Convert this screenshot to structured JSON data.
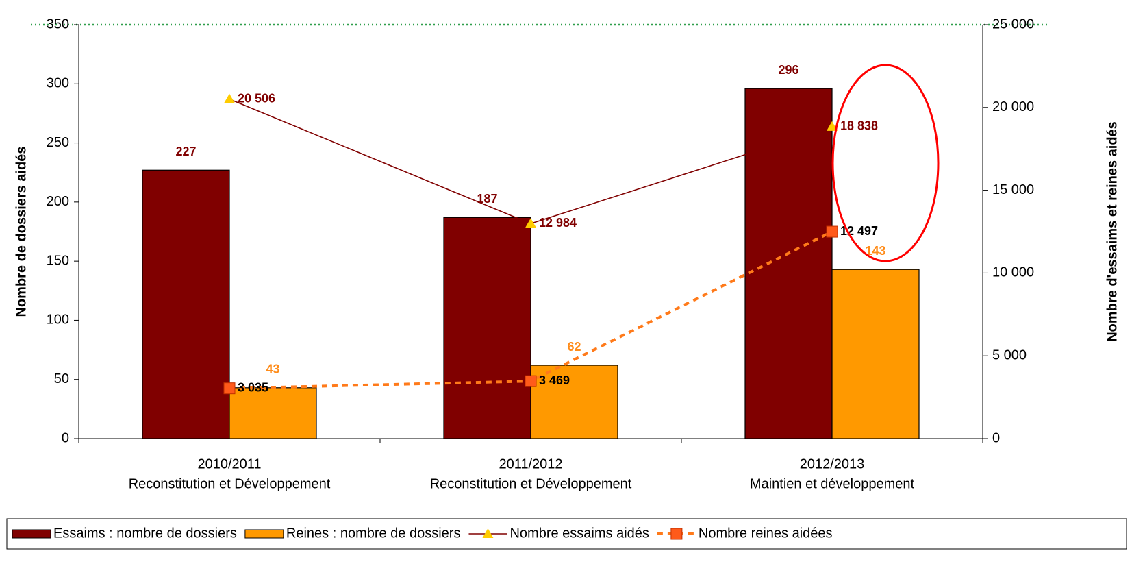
{
  "chart_data": {
    "type": "bar",
    "categories": [
      [
        "2010/2011",
        "Reconstitution et Développement"
      ],
      [
        "2011/2012",
        "Reconstitution et Développement"
      ],
      [
        "2012/2013",
        "Maintien et développement"
      ]
    ],
    "ylabel": "Nombre de dossiers aidés",
    "y2label": "Nombre d'essaims et reines aidés",
    "ylim": [
      0,
      350
    ],
    "yticks": [
      0,
      50,
      100,
      150,
      200,
      250,
      300,
      350
    ],
    "y2lim": [
      0,
      25000
    ],
    "y2ticks": [
      0,
      {
        "value": 5000,
        "label": "5 000"
      },
      {
        "value": 10000,
        "label": "10 000"
      },
      {
        "value": 15000,
        "label": "15 000"
      },
      {
        "value": 20000,
        "label": "20 000"
      },
      {
        "value": 25000,
        "label": "25 000"
      }
    ],
    "series": [
      {
        "name": "Essaims : nombre de dossiers",
        "type": "bar",
        "color": "#800000",
        "label_color": "#800000",
        "values": [
          227,
          187,
          296
        ]
      },
      {
        "name": "Reines : nombre de dossiers",
        "type": "bar",
        "color": "#ff9900",
        "label_color": "#ff8c1a",
        "values": [
          43,
          62,
          143
        ]
      },
      {
        "name": "Nombre essaims aidés",
        "type": "line",
        "axis": "y2",
        "color": "#800000",
        "marker": "triangle",
        "marker_color": "#ffcc00",
        "label_color": "#800000",
        "values": [
          20506,
          12984,
          18838
        ],
        "value_labels": [
          "20 506",
          "12 984",
          "18 838"
        ]
      },
      {
        "name": "Nombre reines aidées",
        "type": "line",
        "axis": "y2",
        "color": "#ff7a1a",
        "dashed": true,
        "marker": "square",
        "marker_color": "#ff5a1a",
        "label_color": "#000000",
        "values": [
          3035,
          3469,
          12497
        ],
        "value_labels": [
          "3 035",
          "3 469",
          "12 497"
        ]
      }
    ]
  }
}
